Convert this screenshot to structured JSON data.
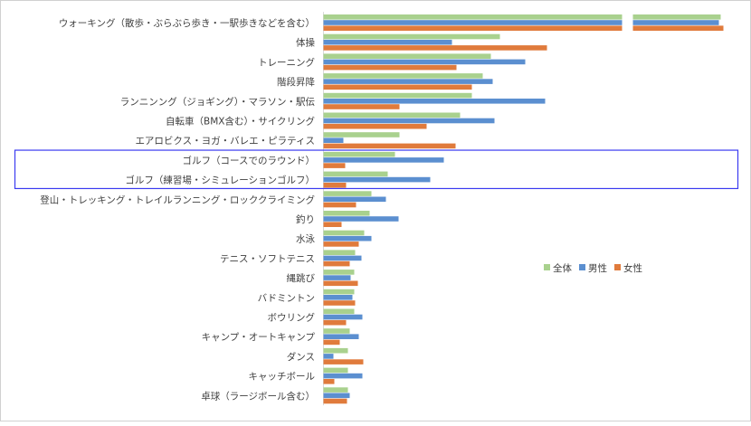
{
  "chart_data": {
    "type": "bar",
    "orientation": "horizontal",
    "title": "",
    "xlabel": "",
    "ylabel": "",
    "axis_break_on_first_category": true,
    "grid": false,
    "legend": {
      "placement": "right",
      "entries": [
        "全体",
        "男性",
        "女性"
      ]
    },
    "colors": {
      "全体": "#a9d18e",
      "男性": "#5b8fd0",
      "女性": "#e07b3c"
    },
    "categories": [
      "ウォーキング（散歩・ぶらぶら歩き・一駅歩きなどを含む）",
      "体操",
      "トレーニング",
      "階段昇降",
      "ランニンング（ジョギング）・マラソン・駅伝",
      "自転車（BMX含む）・サイクリング",
      "エアロビクス・ヨガ・バレエ・ピラティス",
      "ゴルフ（コースでのラウンド）",
      "ゴルフ（練習場・シミュレーションゴルフ）",
      "登山・トレッキング・トレイルランニング・ロッククライミング",
      "釣り",
      "水泳",
      "テニス・ソフトテニス",
      "縄跳び",
      "バドミントン",
      "ボウリング",
      "キャンプ・オートキャンプ",
      "ダンス",
      "キャッチボール",
      "卓球（ラージボール含む）"
    ],
    "series": [
      {
        "name": "全体",
        "values": [
          439,
          195,
          185,
          176,
          164,
          151,
          84,
          79,
          71,
          53,
          51,
          45,
          35,
          34,
          34,
          34,
          29,
          27,
          27,
          27
        ]
      },
      {
        "name": "男性",
        "values": [
          437,
          142,
          223,
          187,
          245,
          189,
          22,
          133,
          118,
          69,
          83,
          53,
          42,
          30,
          32,
          43,
          39,
          11,
          43,
          29
        ]
      },
      {
        "name": "女性",
        "values": [
          442,
          247,
          147,
          164,
          84,
          114,
          146,
          24,
          25,
          36,
          20,
          39,
          29,
          38,
          35,
          25,
          18,
          44,
          12,
          26
        ]
      }
    ],
    "highlight": {
      "categories": [
        "ゴルフ（コースでのラウンド）",
        "ゴルフ（練習場・シミュレーションゴルフ）"
      ],
      "color": "#3b3bf0"
    }
  }
}
